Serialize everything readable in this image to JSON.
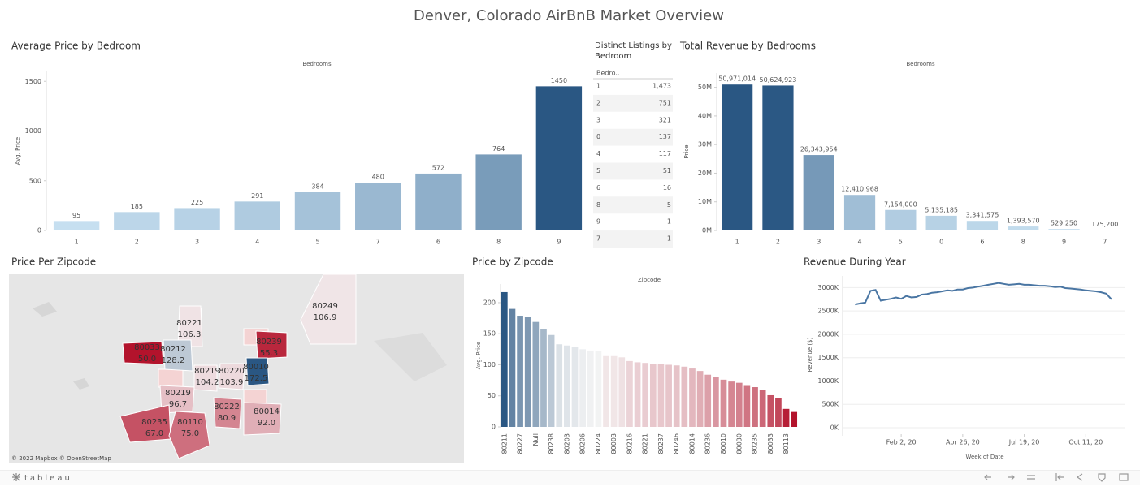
{
  "dashboard_title": "Denver, Colorado AirBnB Market Overview",
  "chart_data": [
    {
      "type": "bar",
      "title": "Average Price by Bedroom",
      "x_label": "Bedrooms",
      "y_label": "Avg. Price",
      "categories": [
        "1",
        "2",
        "3",
        "4",
        "5",
        "7",
        "6",
        "8",
        "9"
      ],
      "values": [
        95,
        185,
        225,
        291,
        384,
        480,
        572,
        764,
        1450
      ],
      "color_range": [
        "#c6dff0",
        "#2a5783"
      ],
      "ylim": [
        0,
        1600
      ],
      "yticks": [
        0,
        500,
        1000,
        1500
      ],
      "grid": false
    },
    {
      "type": "table",
      "title": "Distinct Listings by Bedroom",
      "header": [
        "Bedro.."
      ],
      "rows": [
        [
          "1",
          "1,473"
        ],
        [
          "2",
          "751"
        ],
        [
          "3",
          "321"
        ],
        [
          "0",
          "137"
        ],
        [
          "4",
          "117"
        ],
        [
          "5",
          "51"
        ],
        [
          "6",
          "16"
        ],
        [
          "8",
          "5"
        ],
        [
          "9",
          "1"
        ],
        [
          "7",
          "1"
        ]
      ]
    },
    {
      "type": "bar",
      "title": "Total Revenue by Bedrooms",
      "x_label": "Bedrooms",
      "y_label": "Price",
      "categories": [
        "1",
        "2",
        "3",
        "4",
        "5",
        "0",
        "6",
        "8",
        "9",
        "7"
      ],
      "values": [
        50971014,
        50624923,
        26343954,
        12410968,
        7154000,
        5135185,
        3341575,
        1393570,
        529250,
        175200
      ],
      "value_labels": [
        "50,971,014",
        "50,624,923",
        "26,343,954",
        "12,410,968",
        "7,154,000",
        "5,135,185",
        "3,341,575",
        "1,393,570",
        "529,250",
        "175,200"
      ],
      "color_range": [
        "#c6dff0",
        "#2a5783"
      ],
      "ylim": [
        0,
        55000000
      ],
      "yticks": [
        {
          "value": 0,
          "label": "0M"
        },
        {
          "value": 10000000,
          "label": "10M"
        },
        {
          "value": 20000000,
          "label": "20M"
        },
        {
          "value": 30000000,
          "label": "30M"
        },
        {
          "value": 40000000,
          "label": "40M"
        },
        {
          "value": 50000000,
          "label": "50M"
        }
      ],
      "grid": false
    },
    {
      "type": "map",
      "title": "Price Per Zipcode",
      "attribution": "© 2022 Mapbox © OpenStreetMap",
      "categories": [
        "80249",
        "80221",
        "80033",
        "80212",
        "80239",
        "80219",
        "80220",
        "80010",
        "80219",
        "80222",
        "80014",
        "80235",
        "80110"
      ],
      "values": [
        106.9,
        106.3,
        50.0,
        128.2,
        55.3,
        104.2,
        103.9,
        172.5,
        96.7,
        80.9,
        92.0,
        67.0,
        75.0
      ],
      "value_labels": [
        "106.9",
        "106.3",
        "50.0",
        "128.2",
        "55.3",
        "104.2",
        "103.9",
        "172.5",
        "96.7",
        "80.9",
        "92.0",
        "67.0",
        "75.0"
      ],
      "color_range": [
        "#b3132c",
        "#f5f5f5",
        "#2a5783"
      ]
    },
    {
      "type": "bar",
      "title": "Price by Zipcode",
      "x_label": "Zipcode",
      "y_label": "Avg. Price",
      "categories": [
        "80211",
        null,
        "80227",
        null,
        "Null",
        null,
        "80238",
        null,
        "80203",
        null,
        "80206",
        null,
        "80224",
        null,
        "80003",
        null,
        "80216",
        null,
        "80221",
        null,
        "80237",
        null,
        "80246",
        null,
        "80014",
        null,
        "80236",
        null,
        "80010",
        null,
        "80030",
        null,
        "80235",
        null,
        "80033",
        null,
        "80113",
        null
      ],
      "values": [
        217,
        190,
        179,
        177,
        169,
        158,
        148,
        133,
        131,
        129,
        125,
        123,
        122,
        114,
        114,
        112,
        106,
        104,
        103,
        101,
        101,
        100,
        99,
        97,
        94,
        90,
        84,
        80,
        76,
        73,
        71,
        66,
        64,
        60,
        51,
        46,
        29,
        24
      ],
      "color_range": [
        "#b3132c",
        "#f5f5f5",
        "#2a5783"
      ],
      "ylim": [
        0,
        230
      ],
      "yticks": [
        0,
        50,
        100,
        150,
        200
      ],
      "grid": false
    },
    {
      "type": "line",
      "title": "Revenue During Year",
      "x_label": "Week of Date",
      "y_label": "Revenue ($)",
      "color": "#4a76a3",
      "x": [
        "2019-12-01",
        "2019-12-08",
        "2019-12-15",
        "2019-12-22",
        "2019-12-29",
        "2020-01-05",
        "2020-01-12",
        "2020-01-19",
        "2020-01-26",
        "2020-02-02",
        "2020-02-09",
        "2020-02-16",
        "2020-02-23",
        "2020-03-01",
        "2020-03-08",
        "2020-03-15",
        "2020-03-22",
        "2020-03-29",
        "2020-04-05",
        "2020-04-12",
        "2020-04-19",
        "2020-04-26",
        "2020-05-03",
        "2020-05-10",
        "2020-05-17",
        "2020-05-24",
        "2020-05-31",
        "2020-06-07",
        "2020-06-14",
        "2020-06-21",
        "2020-06-28",
        "2020-07-05",
        "2020-07-12",
        "2020-07-19",
        "2020-07-26",
        "2020-08-02",
        "2020-08-09",
        "2020-08-16",
        "2020-08-23",
        "2020-08-30",
        "2020-09-06",
        "2020-09-13",
        "2020-09-20",
        "2020-09-27",
        "2020-10-04",
        "2020-10-11",
        "2020-10-18",
        "2020-10-25",
        "2020-11-01",
        "2020-11-08",
        "2020-11-15"
      ],
      "values": [
        2640000,
        2660000,
        2680000,
        2930000,
        2950000,
        2720000,
        2740000,
        2760000,
        2790000,
        2760000,
        2820000,
        2790000,
        2800000,
        2850000,
        2860000,
        2890000,
        2900000,
        2920000,
        2940000,
        2930000,
        2960000,
        2960000,
        2990000,
        3000000,
        3020000,
        3040000,
        3060000,
        3080000,
        3100000,
        3080000,
        3060000,
        3070000,
        3080000,
        3060000,
        3060000,
        3050000,
        3040000,
        3040000,
        3030000,
        3010000,
        3020000,
        2990000,
        2980000,
        2970000,
        2960000,
        2940000,
        2930000,
        2920000,
        2900000,
        2870000,
        2750000
      ],
      "xlim": [
        "2019-11-14",
        "2020-12-04"
      ],
      "xticks": [
        {
          "value": "2020-02-02",
          "label": "Feb 2, 20"
        },
        {
          "value": "2020-04-26",
          "label": "Apr 26, 20"
        },
        {
          "value": "2020-07-19",
          "label": "Jul 19, 20"
        },
        {
          "value": "2020-10-11",
          "label": "Oct 11, 20"
        }
      ],
      "ylim": [
        0,
        3250000
      ],
      "yticks": [
        {
          "value": 0,
          "label": "0K"
        },
        {
          "value": 500000,
          "label": "500K"
        },
        {
          "value": 1000000,
          "label": "1000K"
        },
        {
          "value": 1500000,
          "label": "1500K"
        },
        {
          "value": 2000000,
          "label": "2000K"
        },
        {
          "value": 2500000,
          "label": "2500K"
        },
        {
          "value": 3000000,
          "label": "3000K"
        }
      ],
      "grid": true
    }
  ],
  "footer": {
    "brand": "tableau"
  }
}
